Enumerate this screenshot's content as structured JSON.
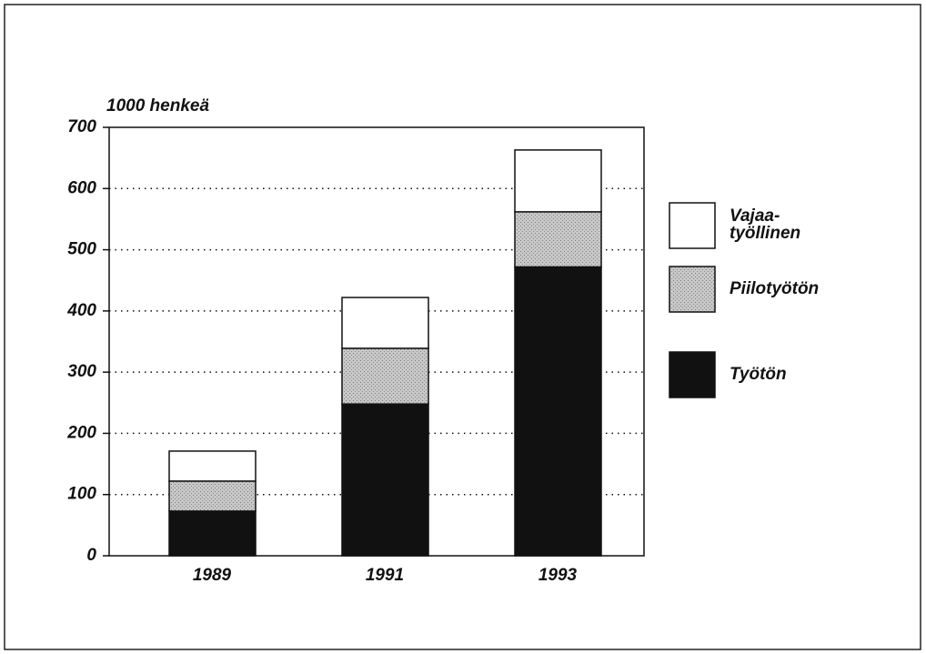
{
  "chart_data": {
    "type": "stacked_bar",
    "y_label": "1000 henkeä",
    "categories": [
      "1989",
      "1991",
      "1993"
    ],
    "series": [
      {
        "name": "Työtön",
        "color": "#111111",
        "values": [
          73,
          248,
          472
        ]
      },
      {
        "name": "Piilotyötön",
        "color": "#bdbdbd",
        "values": [
          49,
          91,
          90
        ]
      },
      {
        "name": "Vajaa-työllinen",
        "color": "#ffffff",
        "values": [
          49,
          83,
          101
        ]
      }
    ],
    "ylim": [
      0,
      700
    ],
    "yticks": [
      0,
      100,
      200,
      300,
      400,
      500,
      600,
      700
    ],
    "grid": true
  }
}
